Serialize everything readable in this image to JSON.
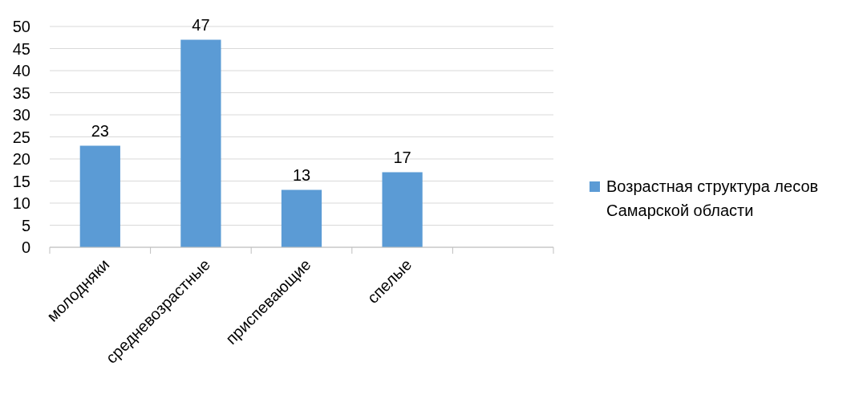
{
  "chart_data": {
    "type": "bar",
    "categories": [
      "молодняки",
      "средневозрастные",
      "приспевающие",
      "спелые",
      null
    ],
    "series": [
      {
        "name": "Возрастная структура лесов Самарской области",
        "color": "#5b9bd5",
        "values": [
          23,
          47,
          13,
          17,
          null
        ]
      }
    ],
    "ylim": [
      0,
      50
    ],
    "yticks": [
      0,
      5,
      10,
      15,
      20,
      25,
      30,
      35,
      40,
      45,
      50
    ],
    "grid": "y",
    "legend": "right",
    "data_labels": true
  }
}
